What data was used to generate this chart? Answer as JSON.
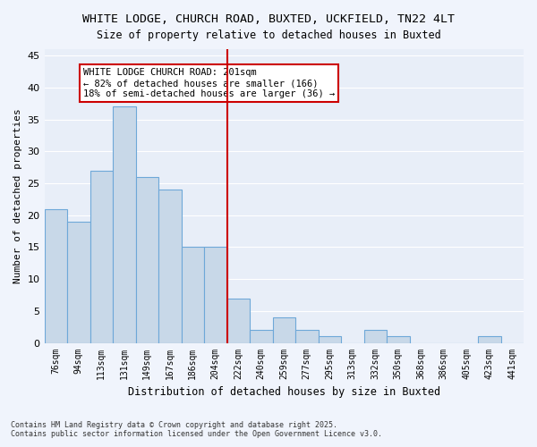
{
  "title": "WHITE LODGE, CHURCH ROAD, BUXTED, UCKFIELD, TN22 4LT",
  "subtitle": "Size of property relative to detached houses in Buxted",
  "xlabel": "Distribution of detached houses by size in Buxted",
  "ylabel": "Number of detached properties",
  "categories": [
    "76sqm",
    "94sqm",
    "113sqm",
    "131sqm",
    "149sqm",
    "167sqm",
    "186sqm",
    "204sqm",
    "222sqm",
    "240sqm",
    "259sqm",
    "277sqm",
    "295sqm",
    "313sqm",
    "332sqm",
    "350sqm",
    "368sqm",
    "386sqm",
    "405sqm",
    "423sqm",
    "441sqm"
  ],
  "values": [
    21,
    19,
    27,
    37,
    26,
    24,
    15,
    15,
    7,
    2,
    4,
    2,
    1,
    0,
    2,
    1,
    0,
    0,
    0,
    1,
    0
  ],
  "bar_color": "#c8d8e8",
  "bar_edge_color": "#6ea8d8",
  "background_color": "#e8eef8",
  "grid_color": "#ffffff",
  "vline_x": 7.5,
  "vline_color": "#cc0000",
  "annotation_text": "WHITE LODGE CHURCH ROAD: 201sqm\n← 82% of detached houses are smaller (166)\n18% of semi-detached houses are larger (36) →",
  "annotation_box_color": "#cc0000",
  "ylim": [
    0,
    46
  ],
  "yticks": [
    0,
    5,
    10,
    15,
    20,
    25,
    30,
    35,
    40,
    45
  ],
  "footnote": "Contains HM Land Registry data © Crown copyright and database right 2025.\nContains public sector information licensed under the Open Government Licence v3.0."
}
